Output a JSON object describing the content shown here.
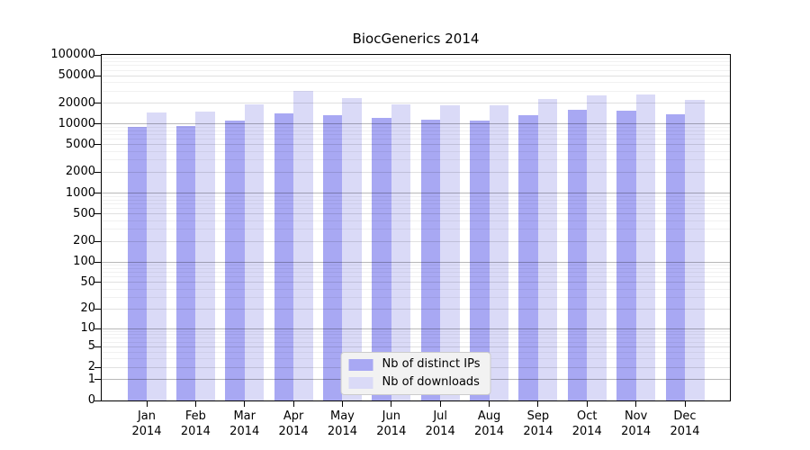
{
  "chart_data": {
    "type": "bar",
    "title": "BiocGenerics 2014",
    "categories": [
      "Jan",
      "Feb",
      "Mar",
      "Apr",
      "May",
      "Jun",
      "Jul",
      "Aug",
      "Sep",
      "Oct",
      "Nov",
      "Dec"
    ],
    "x_sublabel": "2014",
    "series": [
      {
        "name": "Nb of distinct IPs",
        "color": "#a8a8f3",
        "values": [
          9100,
          9300,
          11200,
          14400,
          13300,
          12200,
          11600,
          11100,
          13300,
          16200,
          15400,
          13700
        ]
      },
      {
        "name": "Nb of downloads",
        "color": "#dadaf7",
        "values": [
          14700,
          14900,
          19200,
          30400,
          23500,
          19400,
          18800,
          18600,
          23000,
          26200,
          26700,
          22300
        ]
      }
    ],
    "y_ticks": [
      0,
      1,
      2,
      5,
      10,
      20,
      50,
      100,
      200,
      500,
      1000,
      2000,
      5000,
      10000,
      20000,
      50000,
      100000
    ],
    "y_tick_labels": [
      "0",
      "1",
      "2",
      "5",
      "10",
      "20",
      "50",
      "100",
      "200",
      "500",
      "1000",
      "2000",
      "5000",
      "10000",
      "20000",
      "50000",
      "100000"
    ],
    "y_decade_ticks": [
      1,
      10,
      100,
      1000,
      10000
    ],
    "y_scale": "log10(1+x)",
    "ylim": [
      0,
      100000
    ],
    "xlabel": "",
    "ylabel": "",
    "grid": "horizontal major+minor",
    "legend_position": "lower center inside plot"
  }
}
